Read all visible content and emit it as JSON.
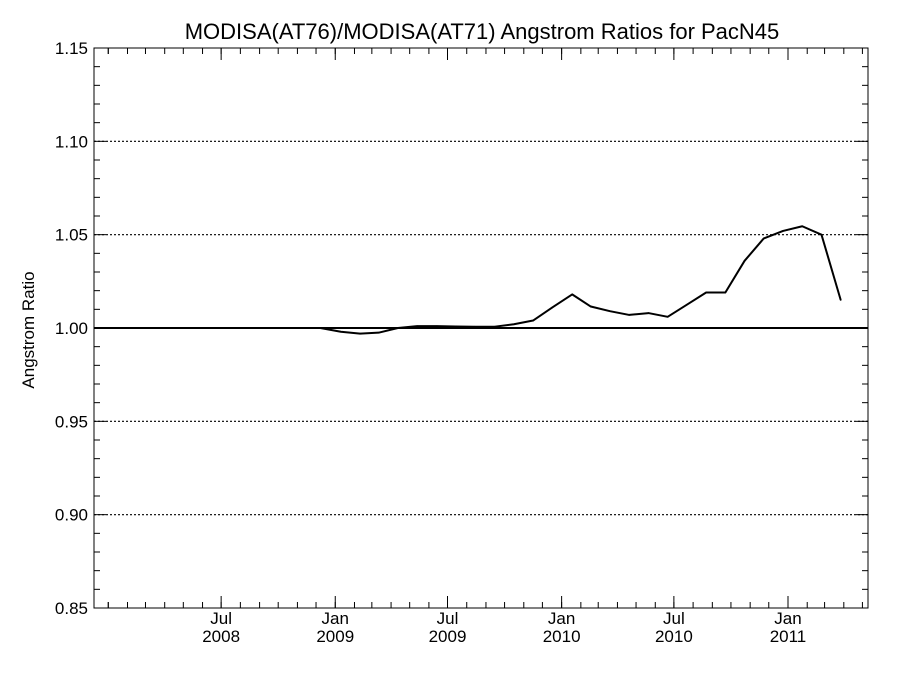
{
  "chart_data": {
    "type": "line",
    "title": "MODISA(AT76)/MODISA(AT71)  Angstrom Ratios for PacN45",
    "xlabel": "",
    "ylabel": "Angstrom Ratio",
    "xlim": [
      "2007-12-09",
      "2011-05-10"
    ],
    "ylim": [
      0.85,
      1.15
    ],
    "yticks": [
      "0.85",
      "0.90",
      "0.95",
      "1.00",
      "1.05",
      "1.10",
      "1.15"
    ],
    "xticks": [
      {
        "date": "2008-07-01",
        "month": "Jul",
        "year": "2008"
      },
      {
        "date": "2009-01-01",
        "month": "Jan",
        "year": "2009"
      },
      {
        "date": "2009-07-01",
        "month": "Jul",
        "year": "2009"
      },
      {
        "date": "2010-01-01",
        "month": "Jan",
        "year": "2010"
      },
      {
        "date": "2010-07-01",
        "month": "Jul",
        "year": "2010"
      },
      {
        "date": "2011-01-01",
        "month": "Jan",
        "year": "2011"
      }
    ],
    "grid": "dotted horizontal at major y ticks",
    "reference_line": 1.0,
    "series": [
      {
        "color": "#000000",
        "x": [
          "2008-11-06",
          "2008-12-08",
          "2009-01-10",
          "2009-02-10",
          "2009-03-12",
          "2009-04-12",
          "2009-05-13",
          "2009-06-14",
          "2009-07-14",
          "2009-08-14",
          "2009-09-15",
          "2009-10-16",
          "2009-11-16",
          "2009-12-17",
          "2010-01-18",
          "2010-02-17",
          "2010-03-20",
          "2010-04-20",
          "2010-05-21",
          "2010-06-21",
          "2010-07-22",
          "2010-08-22",
          "2010-09-22",
          "2010-10-23",
          "2010-11-23",
          "2010-12-24",
          "2011-01-24",
          "2011-02-24",
          "2011-03-27"
        ],
        "y": [
          1.0,
          1.0,
          0.998,
          0.997,
          0.9975,
          1.0,
          1.001,
          1.001,
          1.0008,
          1.0007,
          1.0007,
          1.002,
          1.004,
          1.011,
          1.018,
          1.0115,
          1.009,
          1.007,
          1.008,
          1.006,
          1.0125,
          1.019,
          1.019,
          1.036,
          1.048,
          1.052,
          1.0545,
          1.05,
          1.015
        ]
      }
    ]
  }
}
